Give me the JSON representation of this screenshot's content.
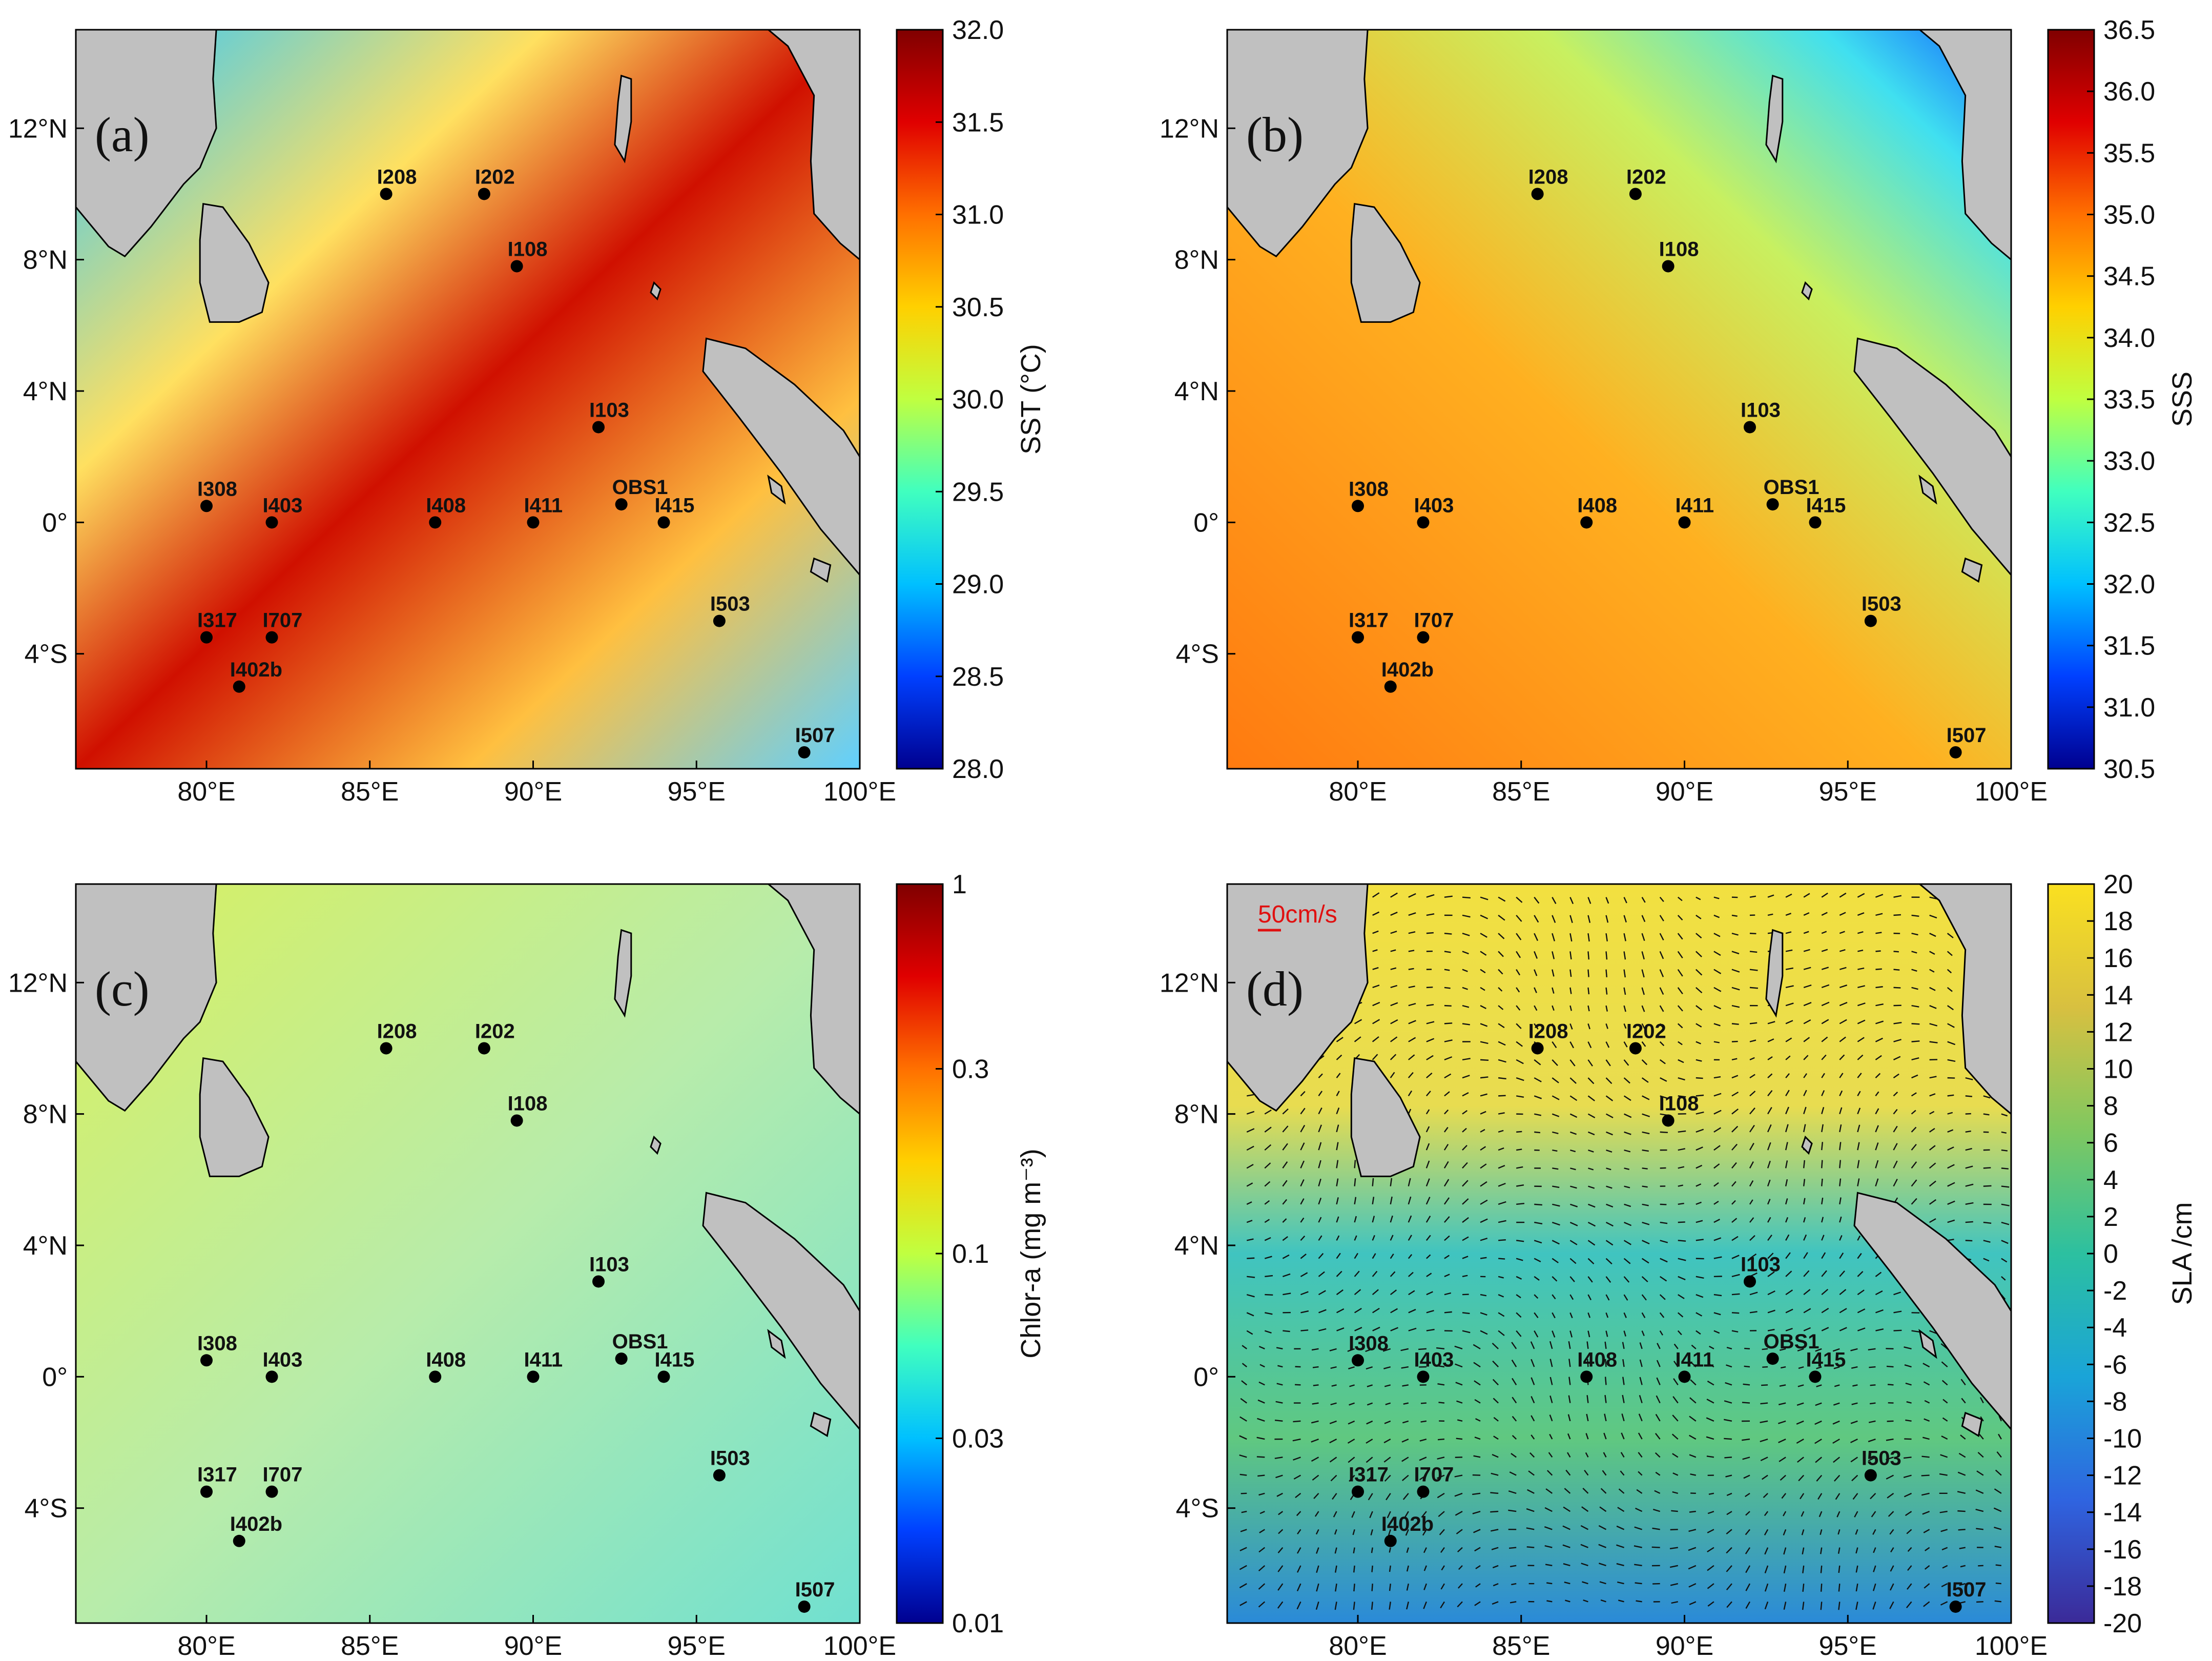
{
  "colors": {
    "land": "#c0c0c0",
    "coast": "#000000",
    "station": "#000000",
    "arrow_key": "#e01010",
    "quiver": "#111111",
    "sst_ramp": [
      "#00008f",
      "#0040ff",
      "#00c0ff",
      "#40ffbf",
      "#c0ff40",
      "#ffd000",
      "#ff7000",
      "#e00000",
      "#800000"
    ],
    "sss_ramp": [
      "#00008f",
      "#0040ff",
      "#00c0ff",
      "#40ffbf",
      "#c0ff40",
      "#ffd000",
      "#ff7000",
      "#e00000",
      "#800000"
    ],
    "chl_ramp": [
      "#00008f",
      "#0040ff",
      "#00c0ff",
      "#40ffbf",
      "#c0ff40",
      "#ffd000",
      "#ff7000",
      "#e00000",
      "#800000"
    ],
    "sla_ramp": [
      "#3b2a98",
      "#2f64e0",
      "#1aa4d8",
      "#2cc0a0",
      "#80c860",
      "#d8c040",
      "#fae020"
    ]
  },
  "map_extent": {
    "lon": [
      76,
      100
    ],
    "lat": [
      -7.5,
      15
    ]
  },
  "axis": {
    "lon_ticks": [
      {
        "value": 80,
        "label": "80°E"
      },
      {
        "value": 85,
        "label": "85°E"
      },
      {
        "value": 90,
        "label": "90°E"
      },
      {
        "value": 95,
        "label": "95°E"
      },
      {
        "value": 100,
        "label": "100°E"
      }
    ],
    "lat_ticks": [
      {
        "value": 12,
        "label": "12°N"
      },
      {
        "value": 8,
        "label": "8°N"
      },
      {
        "value": 4,
        "label": "4°N"
      },
      {
        "value": 0,
        "label": "0°"
      },
      {
        "value": -4,
        "label": "4°S"
      }
    ]
  },
  "stations": [
    {
      "name": "I208",
      "lon": 85.5,
      "lat": 10
    },
    {
      "name": "I202",
      "lon": 88.5,
      "lat": 10
    },
    {
      "name": "I108",
      "lon": 89.5,
      "lat": 7.8
    },
    {
      "name": "I103",
      "lon": 92,
      "lat": 2.9
    },
    {
      "name": "I308",
      "lon": 80,
      "lat": 0.5
    },
    {
      "name": "I403",
      "lon": 82,
      "lat": 0
    },
    {
      "name": "I408",
      "lon": 87,
      "lat": 0
    },
    {
      "name": "I411",
      "lon": 90,
      "lat": 0
    },
    {
      "name": "OBS1",
      "lon": 92.7,
      "lat": 0.55
    },
    {
      "name": "I415",
      "lon": 94,
      "lat": 0
    },
    {
      "name": "I317",
      "lon": 80,
      "lat": -3.5
    },
    {
      "name": "I707",
      "lon": 82,
      "lat": -3.5
    },
    {
      "name": "I402b",
      "lon": 81,
      "lat": -5
    },
    {
      "name": "I503",
      "lon": 95.7,
      "lat": -3
    },
    {
      "name": "I507",
      "lon": 98.3,
      "lat": -7
    }
  ],
  "panels": [
    {
      "tag": "(a)",
      "colorbar_title": "SST (°C)",
      "ticks": [
        "32.0",
        "31.5",
        "31.0",
        "30.5",
        "30.0",
        "29.5",
        "29.0",
        "28.5",
        "28.0"
      ],
      "field": "sst"
    },
    {
      "tag": "(b)",
      "colorbar_title": "SSS",
      "ticks": [
        "36.5",
        "36.0",
        "35.5",
        "35.0",
        "34.5",
        "34.0",
        "33.5",
        "33.0",
        "32.5",
        "32.0",
        "31.5",
        "31.0",
        "30.5"
      ],
      "field": "sss"
    },
    {
      "tag": "(c)",
      "colorbar_title": "Chlor-a (mg m⁻³)",
      "ticks": [
        "1",
        "0.3",
        "0.1",
        "0.03",
        "0.01"
      ],
      "field": "chl"
    },
    {
      "tag": "(d)",
      "colorbar_title": "SLA /cm",
      "ticks": [
        "20",
        "18",
        "16",
        "14",
        "12",
        "10",
        "8",
        "6",
        "4",
        "2",
        "0",
        "-2",
        "-4",
        "-6",
        "-8",
        "-10",
        "-12",
        "-14",
        "-16",
        "-18",
        "-20"
      ],
      "field": "sla",
      "arrow_key": "50cm/s"
    }
  ]
}
